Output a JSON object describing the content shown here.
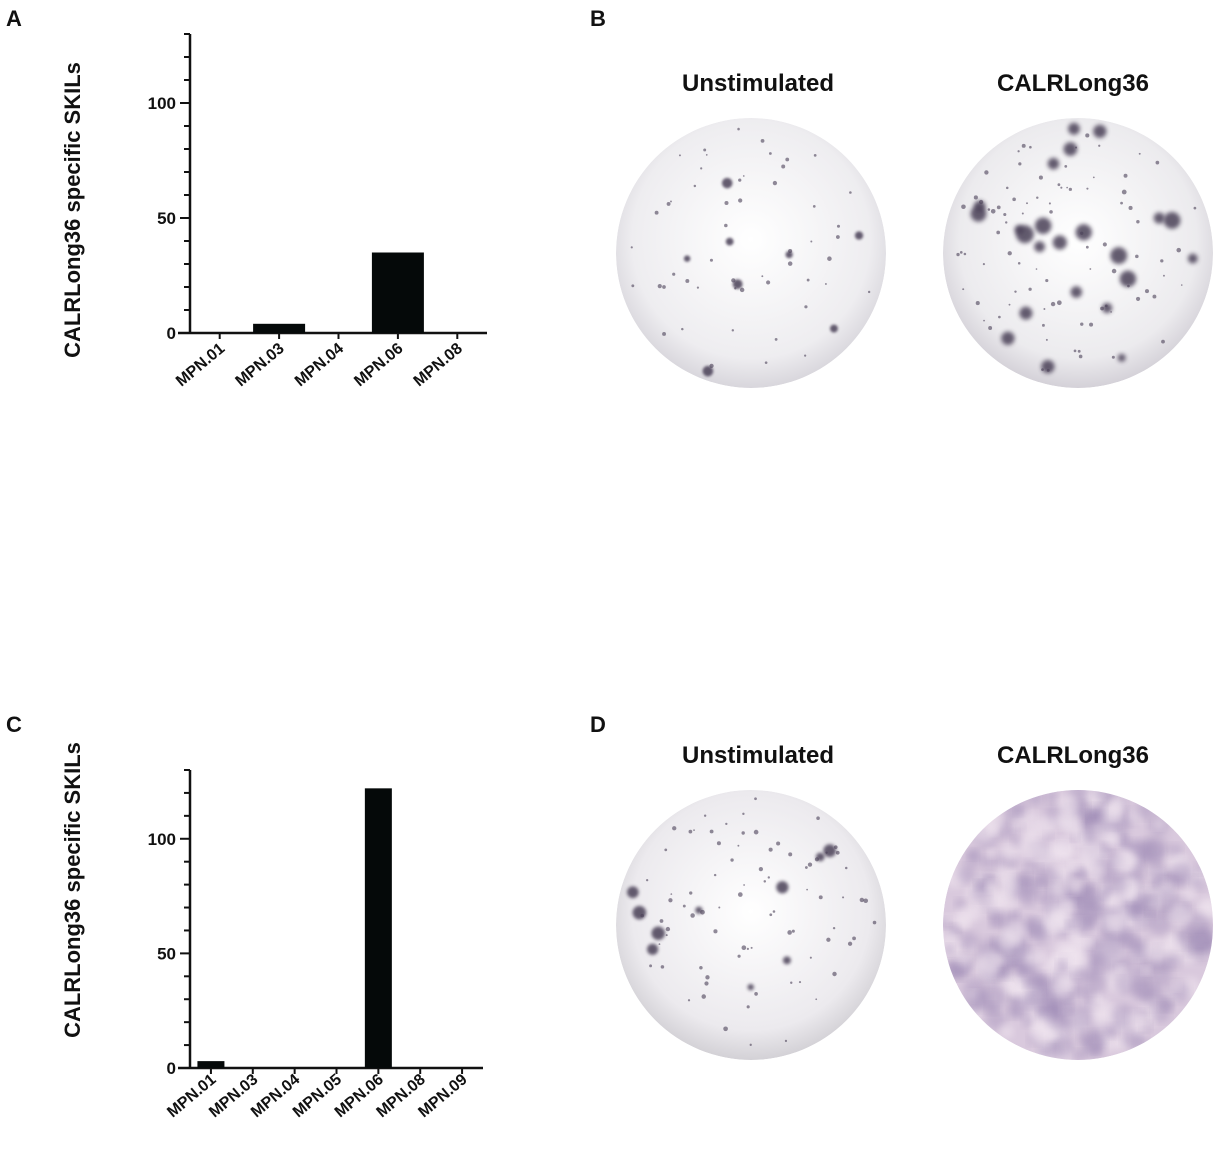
{
  "panels": {
    "a": {
      "letter": "A"
    },
    "b": {
      "letter": "B",
      "left_label": "Unstimulated",
      "right_label": "CALRLong36"
    },
    "c": {
      "letter": "C"
    },
    "d": {
      "letter": "D",
      "left_label": "Unstimulated",
      "right_label": "CALRLong36"
    }
  },
  "colors": {
    "bar": "#050909",
    "axis": "#111111",
    "well_bg": "#f2f1f3",
    "spot": "#4a3f57",
    "stim_well": "#d9c9dd"
  },
  "chart_data": [
    {
      "panel": "A",
      "type": "bar",
      "title": "",
      "xlabel": "",
      "ylabel": "CALRLong36 specific SKILs",
      "categories": [
        "MPN.01",
        "MPN.03",
        "MPN.04",
        "MPN.06",
        "MPN.08"
      ],
      "values": [
        0,
        4,
        0,
        35,
        0
      ],
      "ylim": [
        0,
        130
      ],
      "yticks": [
        0,
        50,
        100
      ],
      "grid": false
    },
    {
      "panel": "C",
      "type": "bar",
      "title": "",
      "xlabel": "",
      "ylabel": "CALRLong36  specific SKILs",
      "categories": [
        "MPN.01",
        "MPN.03",
        "MPN.04",
        "MPN.05",
        "MPN.06",
        "MPN.08",
        "MPN.09"
      ],
      "values": [
        3,
        0,
        0,
        0,
        122,
        0,
        0
      ],
      "ylim": [
        0,
        130
      ],
      "yticks": [
        0,
        50,
        100
      ],
      "grid": false
    }
  ]
}
